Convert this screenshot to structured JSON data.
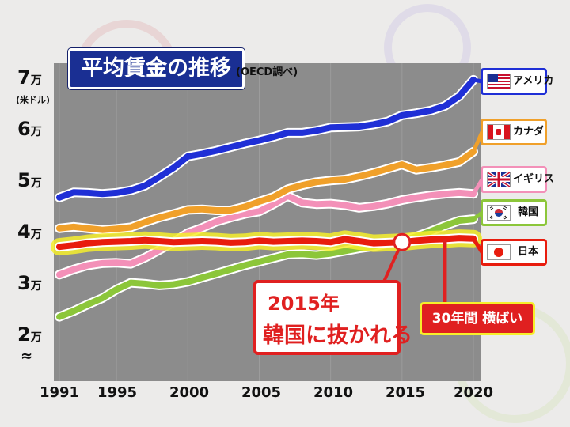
{
  "title": "平均賃金の推移",
  "source": "(OECD調べ)",
  "y_unit": "(米ドル)",
  "y_ticks": [
    {
      "num": "7",
      "unit": "万",
      "value": 70000
    },
    {
      "num": "6",
      "unit": "万",
      "value": 60000
    },
    {
      "num": "5",
      "unit": "万",
      "value": 50000
    },
    {
      "num": "4",
      "unit": "万",
      "value": 40000
    },
    {
      "num": "3",
      "unit": "万",
      "value": 30000
    },
    {
      "num": "2",
      "unit": "万",
      "value": 20000
    }
  ],
  "axis_break": "≈",
  "x_ticks": [
    "1991",
    "1995",
    "2000",
    "2005",
    "2010",
    "2015",
    "2020"
  ],
  "callout_korea": {
    "line1": "2015年",
    "line2": "韓国に抜かれる"
  },
  "callout_japan": "30年間 横ばい",
  "colors": {
    "usa": "#1f2fd6",
    "canada": "#f0a02a",
    "uk": "#f390b8",
    "korea": "#8cc63a",
    "japan": "#e81c0e",
    "japan_glow": "#f6ef2b",
    "title_bg": "#1a2f93",
    "callout_red": "#e02020"
  },
  "chart_data": {
    "type": "line",
    "title": "平均賃金の推移",
    "xlabel": "",
    "ylabel": "(米ドル)",
    "ylim": [
      15000,
      72000
    ],
    "xlim": [
      1991,
      2020
    ],
    "grid": "vertical",
    "legend_position": "right",
    "x": [
      1991,
      1992,
      1993,
      1994,
      1995,
      1996,
      1997,
      1998,
      1999,
      2000,
      2001,
      2002,
      2003,
      2004,
      2005,
      2006,
      2007,
      2008,
      2009,
      2010,
      2011,
      2012,
      2013,
      2014,
      2015,
      2016,
      2017,
      2018,
      2019,
      2020
    ],
    "series": [
      {
        "key": "usa",
        "name": "アメリカ",
        "values": [
          46500,
          47500,
          47400,
          47200,
          47400,
          47900,
          48800,
          50500,
          52300,
          54500,
          55000,
          55600,
          56300,
          57000,
          57600,
          58300,
          59100,
          59100,
          59500,
          60100,
          60200,
          60300,
          60700,
          61300,
          62500,
          62900,
          63400,
          64300,
          66200,
          69400
        ]
      },
      {
        "key": "canada",
        "name": "カナダ",
        "values": [
          40500,
          40800,
          40500,
          40200,
          40400,
          40700,
          41700,
          42600,
          43300,
          44100,
          44200,
          44000,
          44000,
          44700,
          45700,
          46600,
          48100,
          48900,
          49500,
          49800,
          50000,
          50600,
          51300,
          52100,
          52900,
          51900,
          52300,
          52800,
          53400,
          55400
        ]
      },
      {
        "key": "uk",
        "name": "イギリス",
        "values": [
          31500,
          32500,
          33300,
          33700,
          33800,
          33600,
          34800,
          36300,
          37800,
          39600,
          40600,
          41800,
          42600,
          43300,
          43800,
          45200,
          46800,
          45500,
          45200,
          45300,
          45000,
          44500,
          44800,
          45300,
          46000,
          46500,
          46900,
          47200,
          47400,
          47200
        ]
      },
      {
        "key": "korea",
        "name": "韓国",
        "values": [
          23300,
          24400,
          25700,
          26900,
          28600,
          29900,
          29700,
          29400,
          29600,
          30100,
          30900,
          31700,
          32500,
          33300,
          34000,
          34700,
          35400,
          35500,
          35300,
          35600,
          36100,
          36600,
          37000,
          37600,
          38100,
          38900,
          39900,
          41000,
          42000,
          42300
        ]
      },
      {
        "key": "japan",
        "name": "日本",
        "values": [
          36900,
          37200,
          37600,
          37800,
          37900,
          38000,
          38200,
          38000,
          37800,
          37900,
          38000,
          37900,
          37700,
          37800,
          38100,
          37900,
          38000,
          38100,
          38000,
          37800,
          38400,
          38000,
          37600,
          37700,
          37800,
          38100,
          38300,
          38400,
          38600,
          38500
        ]
      }
    ],
    "annotations": [
      {
        "text": "2015年 韓国に抜かれる",
        "x": 2015,
        "y": 37800
      },
      {
        "text": "30年間 横ばい",
        "x": 2018,
        "y": 38400
      }
    ]
  }
}
